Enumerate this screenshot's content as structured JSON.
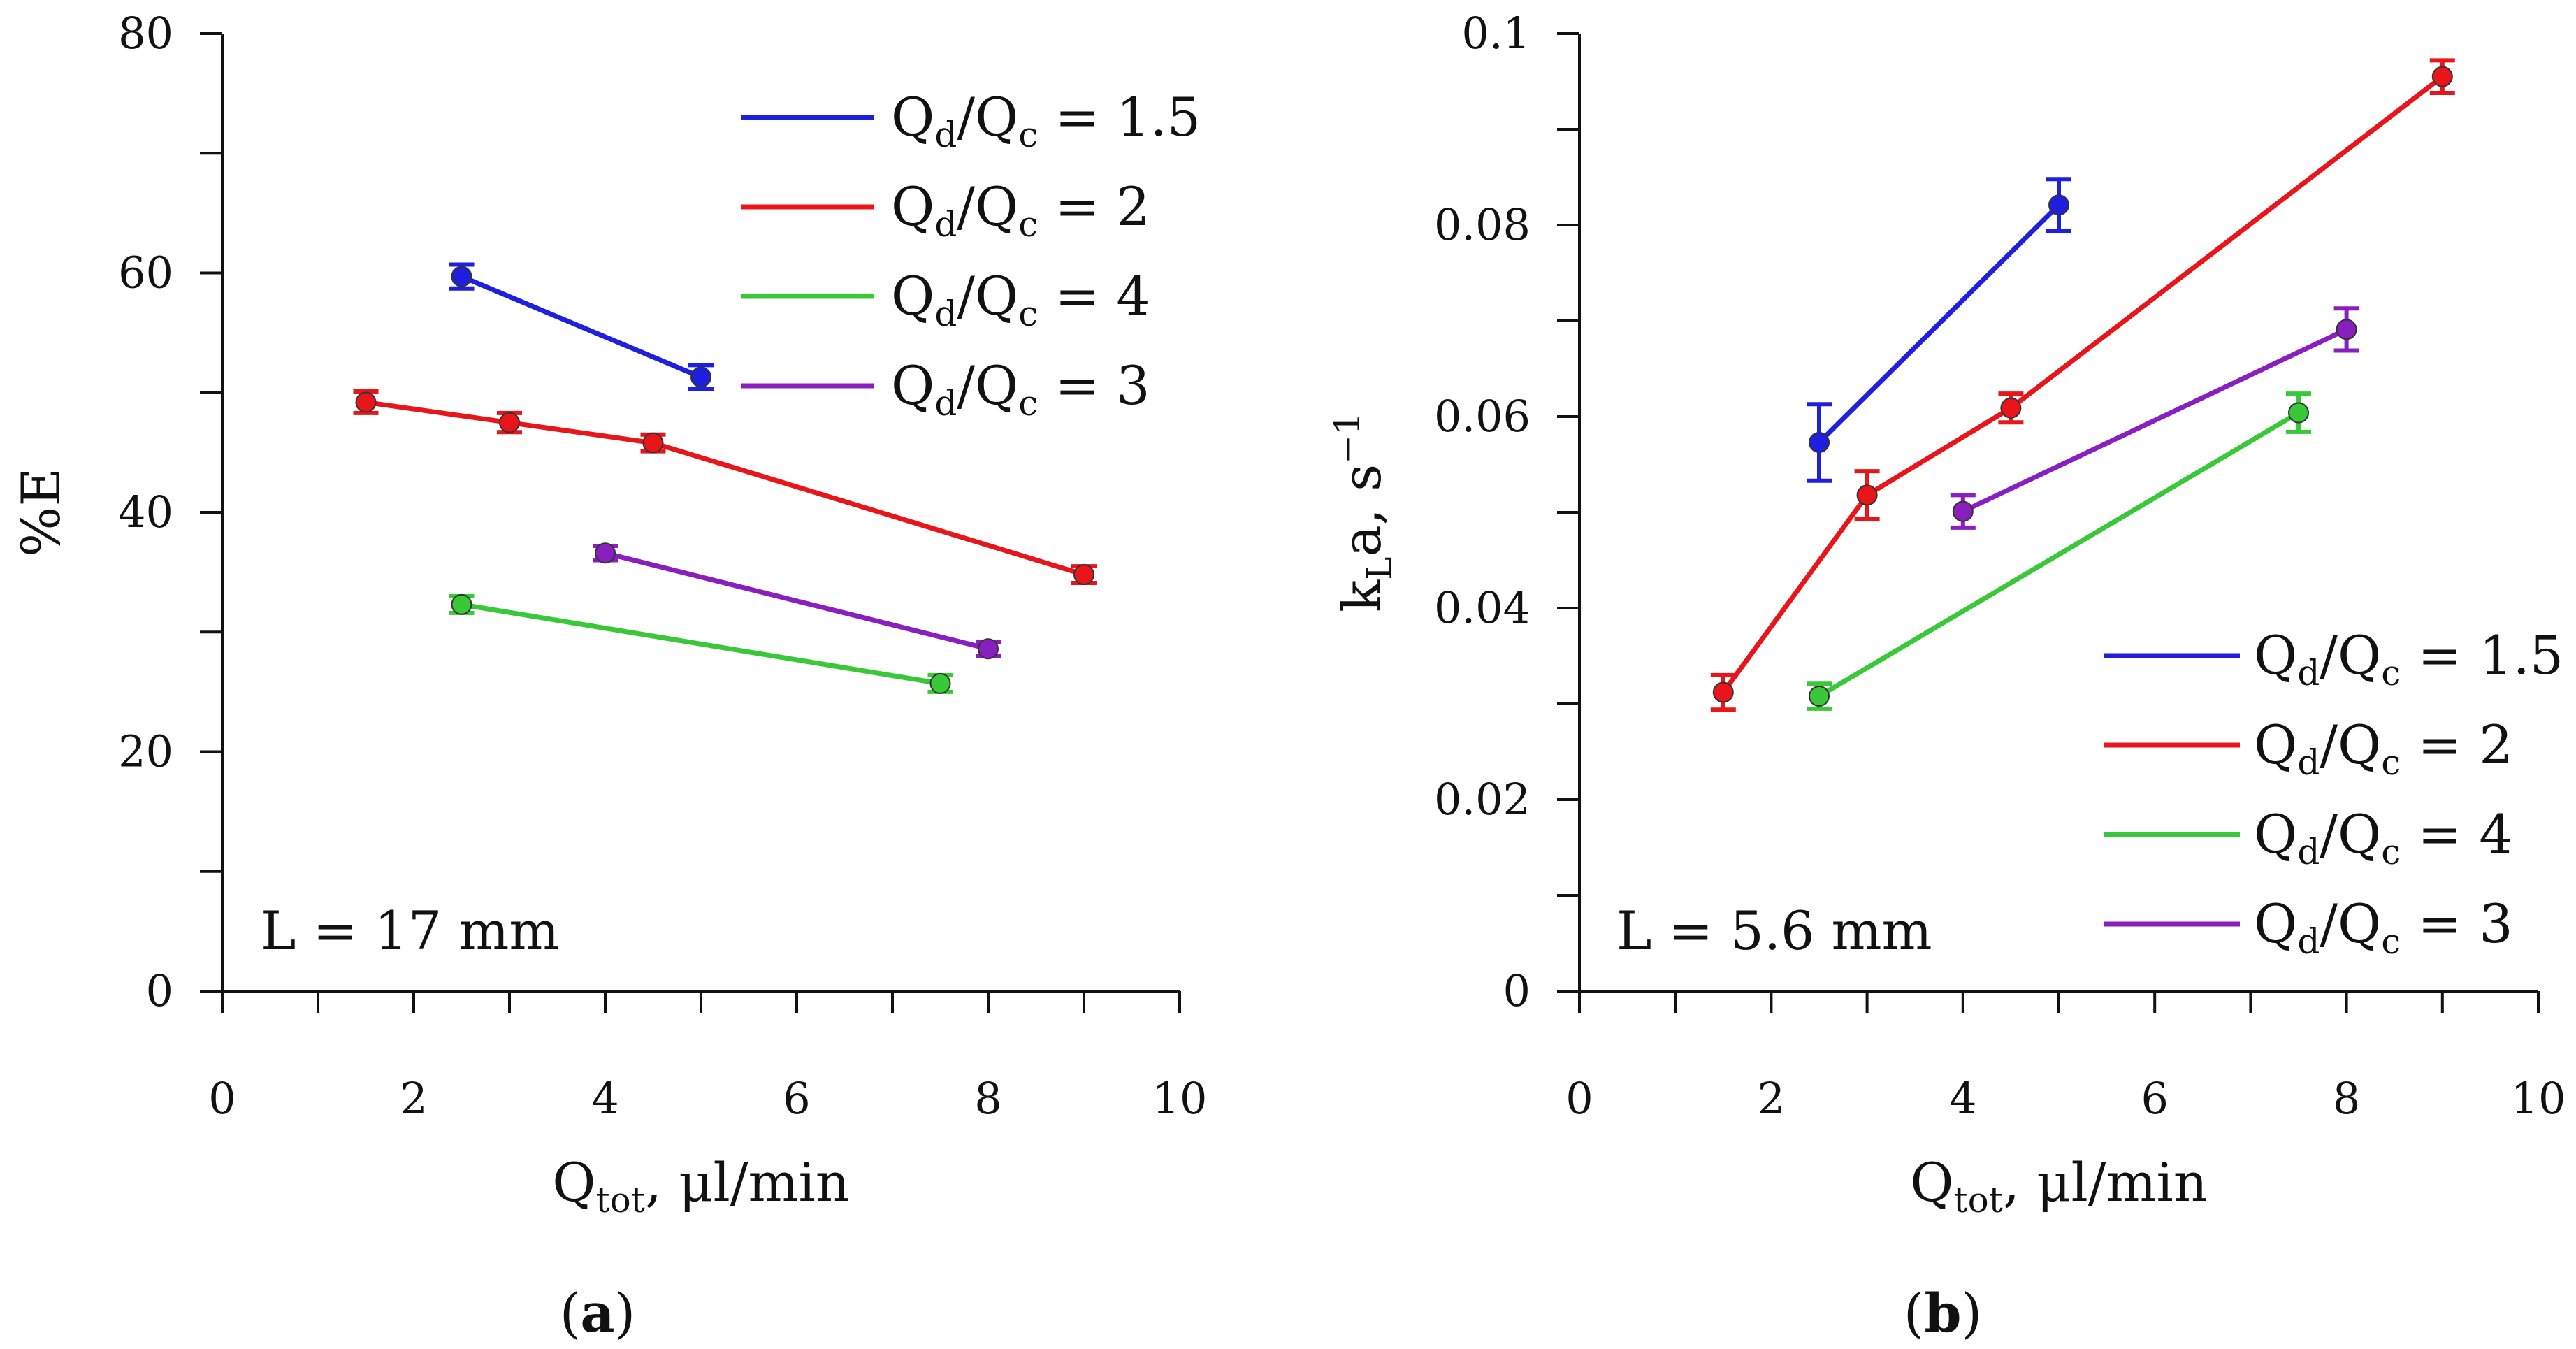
{
  "chart_data": [
    {
      "type": "line",
      "panel_label": "a",
      "xlabel_main": "Q",
      "xlabel_sub": "tot",
      "xlabel_tail": ", μl/min",
      "ylabel": "%E",
      "xlim": [
        0,
        10
      ],
      "ylim": [
        0,
        80
      ],
      "xticks": [
        "0",
        "2",
        "4",
        "6",
        "8",
        "10"
      ],
      "yticks": [
        "0",
        "20",
        "40",
        "60",
        "80"
      ],
      "x_minor_step": 1,
      "y_minor_step": 10,
      "legend_position": "top-right",
      "annotation": "L = 17 mm",
      "series": [
        {
          "name": "1.5",
          "color": "#1f1fe0",
          "x": [
            2.5,
            5
          ],
          "y": [
            59.7,
            51.3
          ],
          "err": [
            1.0,
            1.0
          ]
        },
        {
          "name": "2",
          "color": "#e8161b",
          "x": [
            1.5,
            3,
            4.5,
            9
          ],
          "y": [
            49.2,
            47.5,
            45.8,
            34.8
          ],
          "err": [
            0.9,
            0.8,
            0.7,
            0.7
          ]
        },
        {
          "name": "4",
          "color": "#38c838",
          "x": [
            2.5,
            7.5
          ],
          "y": [
            32.3,
            25.7
          ],
          "err": [
            0.7,
            0.7
          ]
        },
        {
          "name": "3",
          "color": "#8a1fc0",
          "x": [
            4,
            8
          ],
          "y": [
            36.6,
            28.6
          ],
          "err": [
            0.6,
            0.6
          ]
        }
      ]
    },
    {
      "type": "line",
      "panel_label": "b",
      "xlabel_main": "Q",
      "xlabel_sub": "tot",
      "xlabel_tail": ", μl/min",
      "ylabel_main": "k",
      "ylabel_sub": "L",
      "ylabel_mid": "a, s",
      "ylabel_sup": "−1",
      "xlim": [
        0,
        10
      ],
      "ylim": [
        0,
        0.1
      ],
      "xticks": [
        "0",
        "2",
        "4",
        "6",
        "8",
        "10"
      ],
      "yticks": [
        "0",
        "0.02",
        "0.04",
        "0.06",
        "0.08",
        "0.1"
      ],
      "x_minor_step": 1,
      "y_minor_step": 0.01,
      "legend_position": "bottom-right",
      "annotation": "L = 5.6 mm",
      "series": [
        {
          "name": "1.5",
          "color": "#1f1fe0",
          "x": [
            2.5,
            5
          ],
          "y": [
            0.0573,
            0.0821
          ],
          "err": [
            0.004,
            0.0027
          ]
        },
        {
          "name": "2",
          "color": "#e8161b",
          "x": [
            1.5,
            3,
            4.5,
            9
          ],
          "y": [
            0.0312,
            0.0518,
            0.0609,
            0.0955
          ],
          "err": [
            0.0018,
            0.0025,
            0.0015,
            0.0017
          ]
        },
        {
          "name": "4",
          "color": "#38c838",
          "x": [
            2.5,
            7.5
          ],
          "y": [
            0.0308,
            0.0604
          ],
          "err": [
            0.0013,
            0.002
          ]
        },
        {
          "name": "3",
          "color": "#8a1fc0",
          "x": [
            4,
            8
          ],
          "y": [
            0.0501,
            0.0691
          ],
          "err": [
            0.0017,
            0.0022
          ]
        }
      ]
    }
  ],
  "legend_text": {
    "q1": "Q",
    "sub1": "d",
    "slash": "/",
    "q2": "Q",
    "sub2": "c",
    "eq": " = "
  }
}
